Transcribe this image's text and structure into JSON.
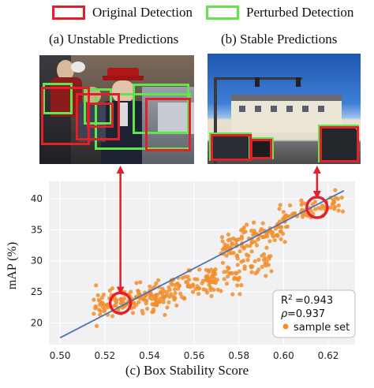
{
  "legend": {
    "original_label": "Original Detection",
    "original_color": "#e0202a",
    "perturbed_label": "Perturbed Detection",
    "perturbed_color": "#62e54a"
  },
  "panels": {
    "a_title": "(a) Unstable Predictions",
    "b_title": "(b) Stable Predictions",
    "c_caption": "(c) Box Stability Score"
  },
  "chart_data": {
    "type": "scatter",
    "xlabel": "",
    "ylabel": "mAP (%)",
    "xlim": [
      0.495,
      0.632
    ],
    "ylim": [
      16.5,
      42.8
    ],
    "xticks": [
      0.5,
      0.52,
      0.54,
      0.56,
      0.58,
      0.6,
      0.62
    ],
    "yticks": [
      20,
      25,
      30,
      35,
      40
    ],
    "grid": true,
    "fit_line": {
      "x": [
        0.5,
        0.627
      ],
      "y": [
        17.6,
        41.3
      ],
      "color": "#4c72b0"
    },
    "stats": {
      "r2": "=0.943",
      "rho": "=0.937"
    },
    "series": [
      {
        "name": "sample set",
        "color": "#f28e2b",
        "clusters": [
          {
            "x_range": [
              0.515,
              0.545
            ],
            "y_center_at_start": 22.6,
            "y_center_at_end": 24.2,
            "spread": 1.2,
            "n": 120
          },
          {
            "x_range": [
              0.54,
              0.57
            ],
            "y_center_at_start": 24.2,
            "y_center_at_end": 27.2,
            "spread": 1.3,
            "n": 110
          },
          {
            "x_range": [
              0.565,
              0.595
            ],
            "y_center_at_start": 26.0,
            "y_center_at_end": 30.0,
            "spread": 1.2,
            "n": 60
          },
          {
            "x_range": [
              0.572,
              0.602
            ],
            "y_center_at_start": 32.0,
            "y_center_at_end": 35.6,
            "spread": 1.4,
            "n": 110
          },
          {
            "x_range": [
              0.598,
              0.627
            ],
            "y_center_at_start": 37.0,
            "y_center_at_end": 39.5,
            "spread": 0.8,
            "n": 60
          }
        ]
      }
    ],
    "highlights": [
      {
        "x": 0.527,
        "y": 23.2,
        "color": "#e0202a"
      },
      {
        "x": 0.615,
        "y": 38.6,
        "color": "#e0202a"
      }
    ],
    "legend": "bottom-right"
  }
}
